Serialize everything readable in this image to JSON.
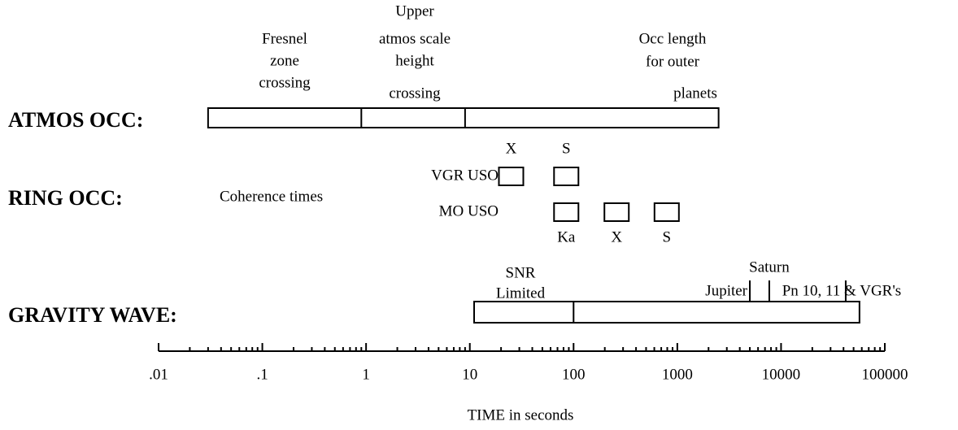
{
  "atmos": {
    "label": "ATMOS OCC:",
    "bar": {
      "start": 0.03,
      "end": 2500,
      "dividers": [
        0.9,
        9
      ]
    },
    "annotations": [
      {
        "lines": [
          "Fresnel",
          "zone",
          "crossing"
        ]
      },
      {
        "lines": [
          "Upper",
          "atmos scale",
          "height",
          "crossing"
        ]
      },
      {
        "lines": [
          "Occ length",
          "for outer",
          "planets"
        ]
      }
    ]
  },
  "ring": {
    "label": "RING OCC:",
    "note": "Coherence times",
    "groups": [
      {
        "name": "VGR USO",
        "bands": [
          {
            "label": "X",
            "value": 25
          },
          {
            "label": "S",
            "value": 85
          }
        ]
      },
      {
        "name": "MO USO",
        "bands": [
          {
            "label": "Ka",
            "value": 85
          },
          {
            "label": "X",
            "value": 260
          },
          {
            "label": "S",
            "value": 790
          }
        ]
      }
    ]
  },
  "gravity": {
    "label": "GRAVITY WAVE:",
    "bar": {
      "start": 11,
      "end": 57000,
      "dividers": [
        100
      ]
    },
    "note": [
      "SNR",
      "Limited"
    ],
    "markers": [
      {
        "label": "Jupiter",
        "value": 5000
      },
      {
        "label": "Saturn",
        "value": 7700
      },
      {
        "label": "Pn 10, 11 & VGR's",
        "value": 42000
      }
    ]
  },
  "axis": {
    "title": "TIME  in seconds",
    "log": true,
    "minor_ticks": true,
    "xlim": [
      0.01,
      100000
    ],
    "xticks": [
      {
        "value": 0.01,
        "label": ".01"
      },
      {
        "value": 0.1,
        "label": ".1"
      },
      1,
      10,
      100,
      1000,
      10000,
      100000
    ]
  }
}
